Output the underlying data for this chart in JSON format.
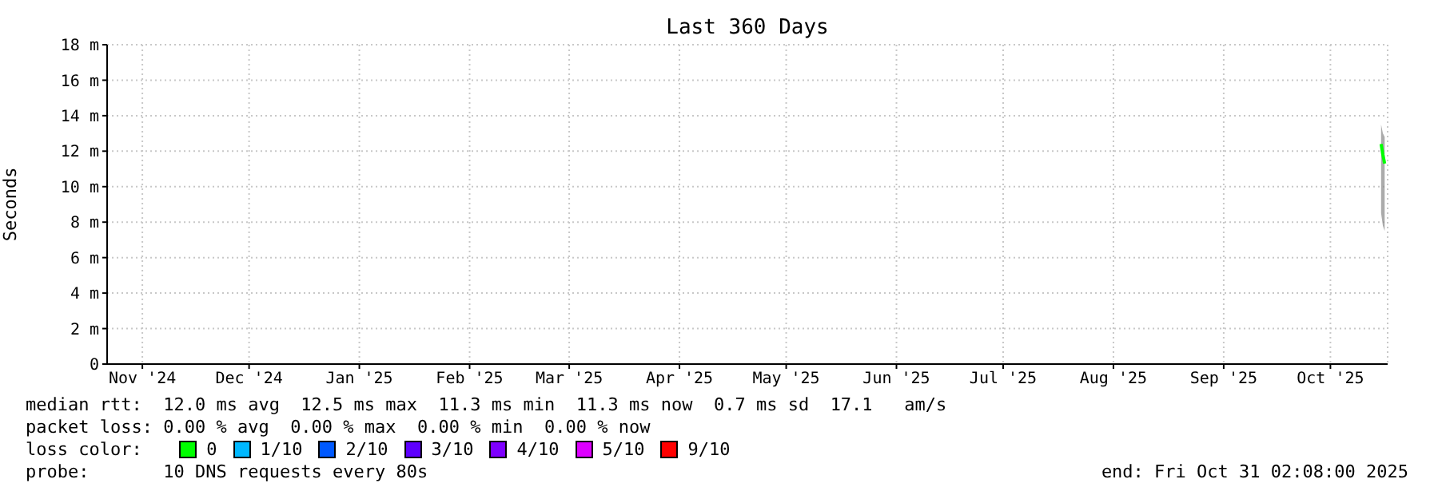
{
  "chart_data": {
    "type": "line",
    "title": "Last 360 Days",
    "ylabel": "Seconds",
    "legend_title": "loss color:",
    "legend": "bottom",
    "grid": true,
    "marker": "none",
    "x": [
      "2025-10-29T06:00",
      "2025-10-29T18:00",
      "2025-10-30T06:00"
    ],
    "xlim": [
      "2024-11-05T02:08",
      "2025-10-31T02:08"
    ],
    "xticks": [
      {
        "value": "2024-11-15",
        "label": "Nov '24"
      },
      {
        "value": "2024-12-15",
        "label": "Dec '24"
      },
      {
        "value": "2025-01-15",
        "label": "Jan '25"
      },
      {
        "value": "2025-02-15",
        "label": "Feb '25"
      },
      {
        "value": "2025-03-15",
        "label": "Mar '25"
      },
      {
        "value": "2025-04-15",
        "label": "Apr '25"
      },
      {
        "value": "2025-05-15",
        "label": "May '25"
      },
      {
        "value": "2025-06-15",
        "label": "Jun '25"
      },
      {
        "value": "2025-07-15",
        "label": "Jul '25"
      },
      {
        "value": "2025-08-15",
        "label": "Aug '25"
      },
      {
        "value": "2025-09-15",
        "label": "Sep '25"
      },
      {
        "value": "2025-10-15",
        "label": "Oct '25"
      }
    ],
    "ylim": [
      0,
      18
    ],
    "yticks": [
      0,
      {
        "value": 2,
        "label": "2 m"
      },
      {
        "value": 4,
        "label": "4 m"
      },
      {
        "value": 6,
        "label": "6 m"
      },
      {
        "value": 8,
        "label": "8 m"
      },
      {
        "value": 10,
        "label": "10 m"
      },
      {
        "value": 12,
        "label": "12 m"
      },
      {
        "value": 14,
        "label": "14 m"
      },
      {
        "value": 16,
        "label": "16 m"
      },
      {
        "value": 18,
        "label": "18 m"
      }
    ],
    "series": [
      {
        "name": "0",
        "color": "#00ff00",
        "values": [
          12.4,
          11.8,
          11.3
        ],
        "lower": [
          8.5,
          7.8,
          7.5
        ],
        "upper": [
          13.5,
          13,
          12.8
        ]
      },
      {
        "name": "1/10",
        "color": "#00b8ff",
        "values": [
          null,
          null,
          null
        ]
      },
      {
        "name": "2/10",
        "color": "#0059ff",
        "values": [
          null,
          null,
          null
        ]
      },
      {
        "name": "3/10",
        "color": "#5e00ff",
        "values": [
          null,
          null,
          null
        ]
      },
      {
        "name": "4/10",
        "color": "#7e00ff",
        "values": [
          null,
          null,
          null
        ]
      },
      {
        "name": "5/10",
        "color": "#dd00ff",
        "values": [
          null,
          null,
          null
        ]
      },
      {
        "name": "9/10",
        "color": "#ff0000",
        "values": [
          null,
          null,
          null
        ]
      }
    ],
    "annotations": [
      "median rtt:  12.0 ms avg  12.5 ms max  11.3 ms min  11.3 ms now  0.7 ms sd  17.1   am/s",
      "packet loss: 0.00 % avg  0.00 % max  0.00 % min  0.00 % now",
      "probe:       10 DNS requests every 80s",
      "end: Fri Oct 31 02:08:00 2025"
    ]
  }
}
